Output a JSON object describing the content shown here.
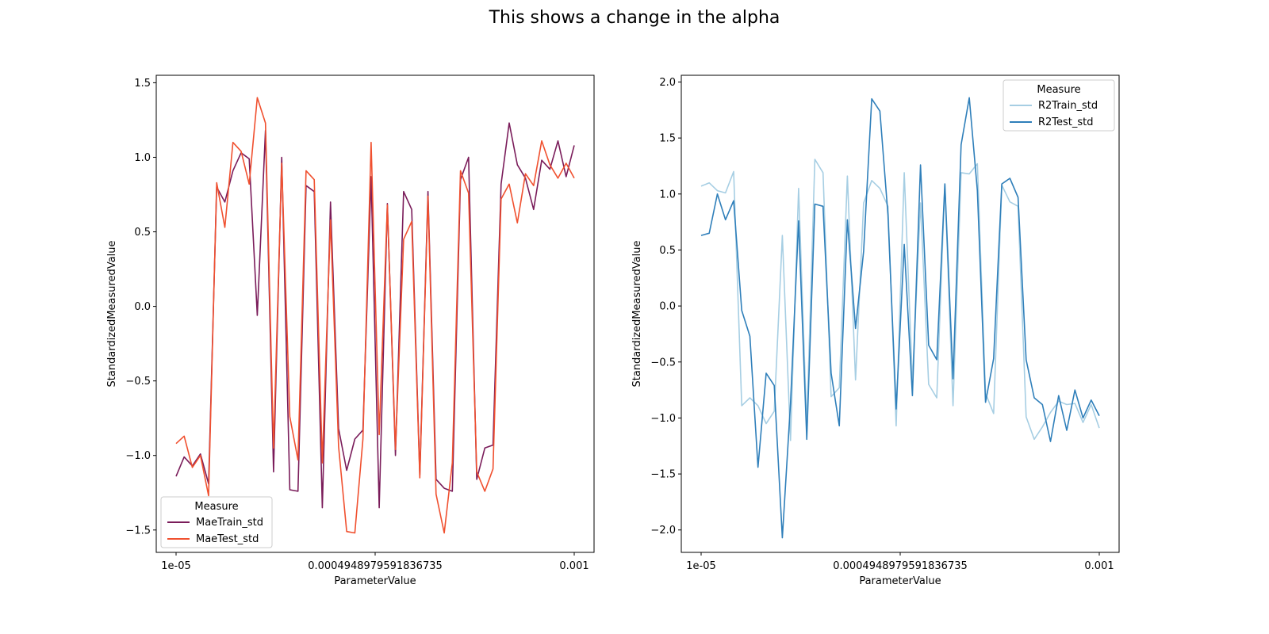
{
  "figure": {
    "title": "This shows a change in the alpha"
  },
  "chart_data": [
    {
      "type": "line",
      "xlabel": "ParameterValue",
      "ylabel": "StandardizedMeasuredValue",
      "x_tick_labels": [
        "1e-05",
        "0.0004948979591836735",
        "0.001"
      ],
      "x_range": [
        0,
        49
      ],
      "ylim": [
        -1.65,
        1.55
      ],
      "y_ticks": [
        -1.5,
        -1.0,
        -0.5,
        0.0,
        0.5,
        1.0,
        1.5
      ],
      "y_tick_labels": [
        "−1.5",
        "−1.0",
        "−0.5",
        "0.0",
        "0.5",
        "1.0",
        "1.5"
      ],
      "legend": {
        "title": "Measure",
        "position": "lower-left"
      },
      "series": [
        {
          "name": "MaeTrain_std",
          "color": "#7a1c5a",
          "values": [
            -1.14,
            -1.01,
            -1.07,
            -0.99,
            -1.19,
            0.8,
            0.7,
            0.91,
            1.03,
            0.99,
            -0.06,
            1.18,
            -1.11,
            1.0,
            -1.23,
            -1.24,
            0.81,
            0.77,
            -1.35,
            0.7,
            -0.82,
            -1.1,
            -0.89,
            -0.83,
            0.87,
            -1.35,
            0.69,
            -1.0,
            0.77,
            0.65,
            -1.13,
            0.77,
            -1.16,
            -1.22,
            -1.24,
            0.85,
            1.0,
            -1.16,
            -0.95,
            -0.93,
            0.82,
            1.23,
            0.95,
            0.86,
            0.65,
            0.98,
            0.92,
            1.11,
            0.87,
            1.08
          ]
        },
        {
          "name": "MaeTest_std",
          "color": "#f0502f",
          "values": [
            -0.92,
            -0.87,
            -1.08,
            -1.0,
            -1.27,
            0.83,
            0.53,
            1.1,
            1.04,
            0.82,
            1.4,
            1.23,
            -0.95,
            0.96,
            -0.74,
            -1.03,
            0.91,
            0.85,
            -1.05,
            0.58,
            -0.94,
            -1.51,
            -1.52,
            -0.89,
            1.1,
            -0.86,
            0.68,
            -0.96,
            0.45,
            0.57,
            -1.15,
            0.74,
            -1.26,
            -1.52,
            -1.05,
            0.91,
            0.76,
            -1.11,
            -1.24,
            -1.09,
            0.72,
            0.82,
            0.56,
            0.89,
            0.81,
            1.11,
            0.95,
            0.86,
            0.96,
            0.86
          ]
        }
      ]
    },
    {
      "type": "line",
      "xlabel": "ParameterValue",
      "ylabel": "StandardizedMeasuredValue",
      "x_tick_labels": [
        "1e-05",
        "0.0004948979591836735",
        "0.001"
      ],
      "x_range": [
        0,
        49
      ],
      "ylim": [
        -2.2,
        2.06
      ],
      "y_ticks": [
        -2.0,
        -1.5,
        -1.0,
        -0.5,
        0.0,
        0.5,
        1.0,
        1.5,
        2.0
      ],
      "y_tick_labels": [
        "−2.0",
        "−1.5",
        "−1.0",
        "−0.5",
        "0.0",
        "0.5",
        "1.0",
        "1.5",
        "2.0"
      ],
      "legend": {
        "title": "Measure",
        "position": "upper-right"
      },
      "series": [
        {
          "name": "R2Train_std",
          "color": "#a6cee3",
          "values": [
            1.07,
            1.1,
            1.03,
            1.01,
            1.2,
            -0.89,
            -0.82,
            -0.89,
            -1.05,
            -0.94,
            0.63,
            -1.2,
            1.05,
            -1.07,
            1.31,
            1.19,
            -0.81,
            -0.73,
            1.16,
            -0.66,
            0.92,
            1.12,
            1.05,
            0.89,
            -1.07,
            1.19,
            -0.67,
            0.92,
            -0.7,
            -0.82,
            1.09,
            -0.89,
            1.19,
            1.18,
            1.27,
            -0.78,
            -0.96,
            1.08,
            0.93,
            0.89,
            -0.99,
            -1.19,
            -1.08,
            -0.95,
            -0.85,
            -0.88,
            -0.87,
            -1.04,
            -0.88,
            -1.09
          ]
        },
        {
          "name": "R2Test_std",
          "color": "#2f7fba",
          "values": [
            0.63,
            0.65,
            1.0,
            0.77,
            0.94,
            -0.04,
            -0.27,
            -1.44,
            -0.6,
            -0.71,
            -2.07,
            -0.87,
            0.76,
            -1.19,
            0.91,
            0.89,
            -0.6,
            -1.07,
            0.77,
            -0.2,
            0.49,
            1.85,
            1.74,
            0.81,
            -0.92,
            0.55,
            -0.8,
            1.26,
            -0.35,
            -0.48,
            1.09,
            -0.65,
            1.44,
            1.86,
            1.03,
            -0.86,
            -0.47,
            1.09,
            1.14,
            0.97,
            -0.48,
            -0.82,
            -0.88,
            -1.21,
            -0.8,
            -1.11,
            -0.75,
            -1.0,
            -0.84,
            -0.98
          ]
        }
      ]
    }
  ]
}
